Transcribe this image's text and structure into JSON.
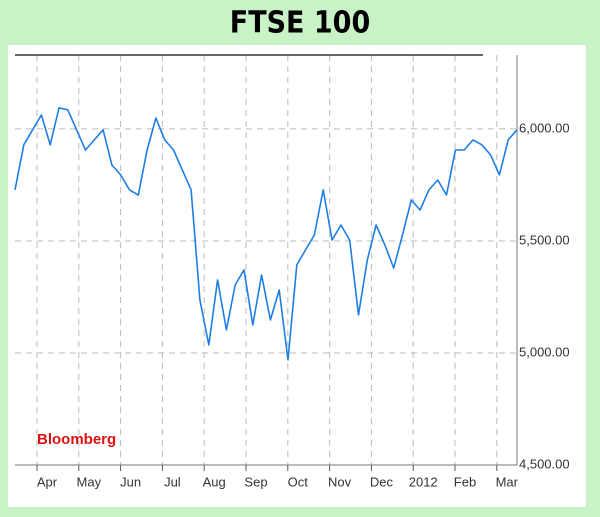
{
  "chart_data": {
    "type": "line",
    "title": "FTSE 100",
    "source": "Bloomberg",
    "x_labels": [
      "Apr",
      "May",
      "Jun",
      "Jul",
      "Aug",
      "Sep",
      "Oct",
      "Nov",
      "Dec",
      "2012",
      "Feb",
      "Mar"
    ],
    "values": [
      5728,
      5929,
      5996,
      6062,
      5929,
      6094,
      6085,
      5996,
      5906,
      5951,
      5996,
      5839,
      5795,
      5728,
      5705,
      5906,
      6049,
      5951,
      5906,
      5817,
      5728,
      5237,
      5036,
      5326,
      5103,
      5304,
      5371,
      5125,
      5348,
      5147,
      5281,
      4969,
      5393,
      5460,
      5527,
      5728,
      5504,
      5571,
      5504,
      5170,
      5415,
      5571,
      5482,
      5379,
      5527,
      5683,
      5638,
      5728,
      5772,
      5705,
      5906,
      5906,
      5951,
      5929,
      5884,
      5795,
      5951,
      5996
    ],
    "color": "#1e7ee6",
    "ylim": [
      4500,
      6330
    ],
    "yticks": [
      {
        "value": 4500,
        "label": "4,500.00"
      },
      {
        "value": 5000,
        "label": "5,000.00"
      },
      {
        "value": 5500,
        "label": "5,500.00"
      },
      {
        "value": 6000,
        "label": "6,000.00"
      }
    ],
    "grid": true,
    "y_axis_side": "right"
  }
}
